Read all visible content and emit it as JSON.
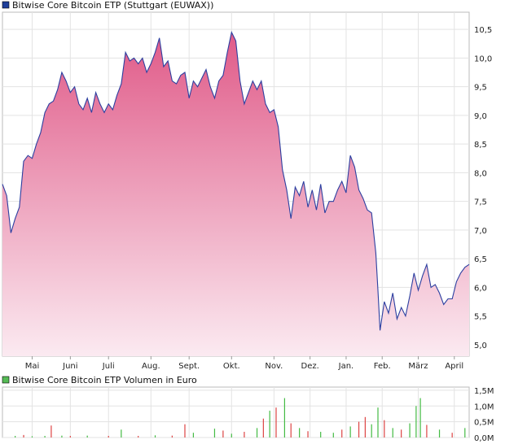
{
  "chart_data": [
    {
      "type": "area",
      "title": "Bitwise Core Bitcoin ETP (Stuttgart (EUWAX))",
      "legend_color": "#1f3f9a",
      "line_color": "#2c3fa0",
      "fill_top_color": "#e05a88",
      "fill_bottom_color": "#fbeaf1",
      "ylim": [
        4.8,
        10.8
      ],
      "yticks": [
        "10,5",
        "10,0",
        "9,5",
        "9,0",
        "8,5",
        "8,0",
        "7,5",
        "7,0",
        "6,5",
        "6,0",
        "5,5",
        "5,0"
      ],
      "ytick_values": [
        10.5,
        10.0,
        9.5,
        9.0,
        8.5,
        8.0,
        7.5,
        7.0,
        6.5,
        6.0,
        5.5,
        5.0
      ],
      "xticks": [
        "Mai",
        "Juni",
        "Juli",
        "Aug.",
        "Sept.",
        "Okt.",
        "Nov.",
        "Dez.",
        "Jan.",
        "Feb.",
        "März",
        "April"
      ],
      "xtick_positions": [
        0.07,
        0.16,
        0.25,
        0.35,
        0.44,
        0.54,
        0.64,
        0.725,
        0.81,
        0.895,
        0.98,
        1.065
      ],
      "series": [
        {
          "points": [
            [
              0.0,
              7.8
            ],
            [
              0.01,
              7.6
            ],
            [
              0.02,
              6.95
            ],
            [
              0.03,
              7.2
            ],
            [
              0.04,
              7.4
            ],
            [
              0.05,
              8.2
            ],
            [
              0.06,
              8.3
            ],
            [
              0.07,
              8.25
            ],
            [
              0.08,
              8.5
            ],
            [
              0.09,
              8.7
            ],
            [
              0.1,
              9.05
            ],
            [
              0.11,
              9.2
            ],
            [
              0.12,
              9.25
            ],
            [
              0.13,
              9.45
            ],
            [
              0.14,
              9.75
            ],
            [
              0.15,
              9.6
            ],
            [
              0.16,
              9.4
            ],
            [
              0.17,
              9.5
            ],
            [
              0.18,
              9.2
            ],
            [
              0.19,
              9.1
            ],
            [
              0.2,
              9.3
            ],
            [
              0.21,
              9.05
            ],
            [
              0.22,
              9.4
            ],
            [
              0.23,
              9.2
            ],
            [
              0.24,
              9.05
            ],
            [
              0.25,
              9.2
            ],
            [
              0.26,
              9.1
            ],
            [
              0.27,
              9.35
            ],
            [
              0.28,
              9.55
            ],
            [
              0.29,
              10.1
            ],
            [
              0.3,
              9.95
            ],
            [
              0.31,
              10.0
            ],
            [
              0.32,
              9.9
            ],
            [
              0.33,
              10.0
            ],
            [
              0.34,
              9.75
            ],
            [
              0.35,
              9.9
            ],
            [
              0.36,
              10.1
            ],
            [
              0.37,
              10.35
            ],
            [
              0.38,
              9.85
            ],
            [
              0.39,
              9.95
            ],
            [
              0.4,
              9.6
            ],
            [
              0.41,
              9.55
            ],
            [
              0.42,
              9.7
            ],
            [
              0.43,
              9.75
            ],
            [
              0.44,
              9.3
            ],
            [
              0.45,
              9.6
            ],
            [
              0.46,
              9.5
            ],
            [
              0.47,
              9.65
            ],
            [
              0.48,
              9.8
            ],
            [
              0.49,
              9.5
            ],
            [
              0.5,
              9.3
            ],
            [
              0.51,
              9.6
            ],
            [
              0.52,
              9.7
            ],
            [
              0.53,
              10.1
            ],
            [
              0.54,
              10.45
            ],
            [
              0.55,
              10.3
            ],
            [
              0.56,
              9.6
            ],
            [
              0.57,
              9.2
            ],
            [
              0.58,
              9.4
            ],
            [
              0.59,
              9.6
            ],
            [
              0.6,
              9.45
            ],
            [
              0.61,
              9.6
            ],
            [
              0.62,
              9.2
            ],
            [
              0.63,
              9.05
            ],
            [
              0.64,
              9.1
            ],
            [
              0.65,
              8.8
            ],
            [
              0.66,
              8.05
            ],
            [
              0.67,
              7.7
            ],
            [
              0.68,
              7.2
            ],
            [
              0.69,
              7.75
            ],
            [
              0.7,
              7.6
            ],
            [
              0.71,
              7.85
            ],
            [
              0.72,
              7.4
            ],
            [
              0.73,
              7.7
            ],
            [
              0.74,
              7.35
            ],
            [
              0.75,
              7.8
            ],
            [
              0.76,
              7.3
            ],
            [
              0.77,
              7.5
            ],
            [
              0.78,
              7.5
            ],
            [
              0.79,
              7.7
            ],
            [
              0.8,
              7.85
            ],
            [
              0.81,
              7.65
            ],
            [
              0.82,
              8.3
            ],
            [
              0.83,
              8.1
            ],
            [
              0.84,
              7.7
            ],
            [
              0.85,
              7.55
            ],
            [
              0.86,
              7.35
            ],
            [
              0.87,
              7.3
            ],
            [
              0.88,
              6.6
            ],
            [
              0.885,
              5.95
            ],
            [
              0.89,
              5.25
            ],
            [
              0.9,
              5.75
            ],
            [
              0.91,
              5.55
            ],
            [
              0.92,
              5.9
            ],
            [
              0.93,
              5.45
            ],
            [
              0.94,
              5.65
            ],
            [
              0.95,
              5.5
            ],
            [
              0.96,
              5.85
            ],
            [
              0.97,
              6.25
            ],
            [
              0.98,
              5.95
            ],
            [
              0.99,
              6.2
            ],
            [
              1.0,
              6.4
            ],
            [
              1.01,
              6.0
            ],
            [
              1.02,
              6.05
            ],
            [
              1.03,
              5.9
            ],
            [
              1.04,
              5.7
            ],
            [
              1.05,
              5.8
            ],
            [
              1.06,
              5.8
            ],
            [
              1.07,
              6.1
            ],
            [
              1.08,
              6.25
            ],
            [
              1.09,
              6.35
            ],
            [
              1.1,
              6.4
            ]
          ]
        }
      ]
    },
    {
      "type": "bar",
      "title": "Bitwise Core Bitcoin ETP Volumen in Euro",
      "legend_color": "#55bb55",
      "ylim": [
        0,
        1.6
      ],
      "yticks": [
        "1,5M",
        "1,0M",
        "0,5M",
        "0,0M"
      ],
      "ytick_values": [
        1.5,
        1.0,
        0.5,
        0.0
      ],
      "bars": [
        {
          "x": 0.03,
          "v": 0.05,
          "c": "g"
        },
        {
          "x": 0.05,
          "v": 0.08,
          "c": "r"
        },
        {
          "x": 0.07,
          "v": 0.04,
          "c": "g"
        },
        {
          "x": 0.1,
          "v": 0.05,
          "c": "g"
        },
        {
          "x": 0.115,
          "v": 0.38,
          "c": "r"
        },
        {
          "x": 0.14,
          "v": 0.06,
          "c": "g"
        },
        {
          "x": 0.16,
          "v": 0.05,
          "c": "r"
        },
        {
          "x": 0.2,
          "v": 0.06,
          "c": "g"
        },
        {
          "x": 0.25,
          "v": 0.05,
          "c": "r"
        },
        {
          "x": 0.28,
          "v": 0.25,
          "c": "g"
        },
        {
          "x": 0.32,
          "v": 0.05,
          "c": "r"
        },
        {
          "x": 0.36,
          "v": 0.07,
          "c": "g"
        },
        {
          "x": 0.4,
          "v": 0.06,
          "c": "r"
        },
        {
          "x": 0.43,
          "v": 0.42,
          "c": "r"
        },
        {
          "x": 0.45,
          "v": 0.15,
          "c": "g"
        },
        {
          "x": 0.5,
          "v": 0.28,
          "c": "g"
        },
        {
          "x": 0.52,
          "v": 0.22,
          "c": "r"
        },
        {
          "x": 0.54,
          "v": 0.12,
          "c": "g"
        },
        {
          "x": 0.57,
          "v": 0.18,
          "c": "r"
        },
        {
          "x": 0.6,
          "v": 0.3,
          "c": "g"
        },
        {
          "x": 0.615,
          "v": 0.6,
          "c": "r"
        },
        {
          "x": 0.63,
          "v": 0.85,
          "c": "g"
        },
        {
          "x": 0.645,
          "v": 0.95,
          "c": "r"
        },
        {
          "x": 0.665,
          "v": 1.25,
          "c": "g"
        },
        {
          "x": 0.68,
          "v": 0.45,
          "c": "r"
        },
        {
          "x": 0.7,
          "v": 0.3,
          "c": "g"
        },
        {
          "x": 0.72,
          "v": 0.2,
          "c": "r"
        },
        {
          "x": 0.75,
          "v": 0.18,
          "c": "g"
        },
        {
          "x": 0.78,
          "v": 0.15,
          "c": "g"
        },
        {
          "x": 0.8,
          "v": 0.25,
          "c": "r"
        },
        {
          "x": 0.82,
          "v": 0.35,
          "c": "g"
        },
        {
          "x": 0.84,
          "v": 0.5,
          "c": "r"
        },
        {
          "x": 0.855,
          "v": 0.65,
          "c": "r"
        },
        {
          "x": 0.87,
          "v": 0.42,
          "c": "g"
        },
        {
          "x": 0.885,
          "v": 0.95,
          "c": "g"
        },
        {
          "x": 0.9,
          "v": 0.55,
          "c": "r"
        },
        {
          "x": 0.92,
          "v": 0.3,
          "c": "g"
        },
        {
          "x": 0.94,
          "v": 0.25,
          "c": "r"
        },
        {
          "x": 0.96,
          "v": 0.45,
          "c": "g"
        },
        {
          "x": 0.975,
          "v": 1.0,
          "c": "g"
        },
        {
          "x": 0.985,
          "v": 1.25,
          "c": "g"
        },
        {
          "x": 1.0,
          "v": 0.4,
          "c": "r"
        },
        {
          "x": 1.03,
          "v": 0.25,
          "c": "g"
        },
        {
          "x": 1.06,
          "v": 0.15,
          "c": "r"
        },
        {
          "x": 1.09,
          "v": 0.3,
          "c": "g"
        }
      ]
    }
  ]
}
